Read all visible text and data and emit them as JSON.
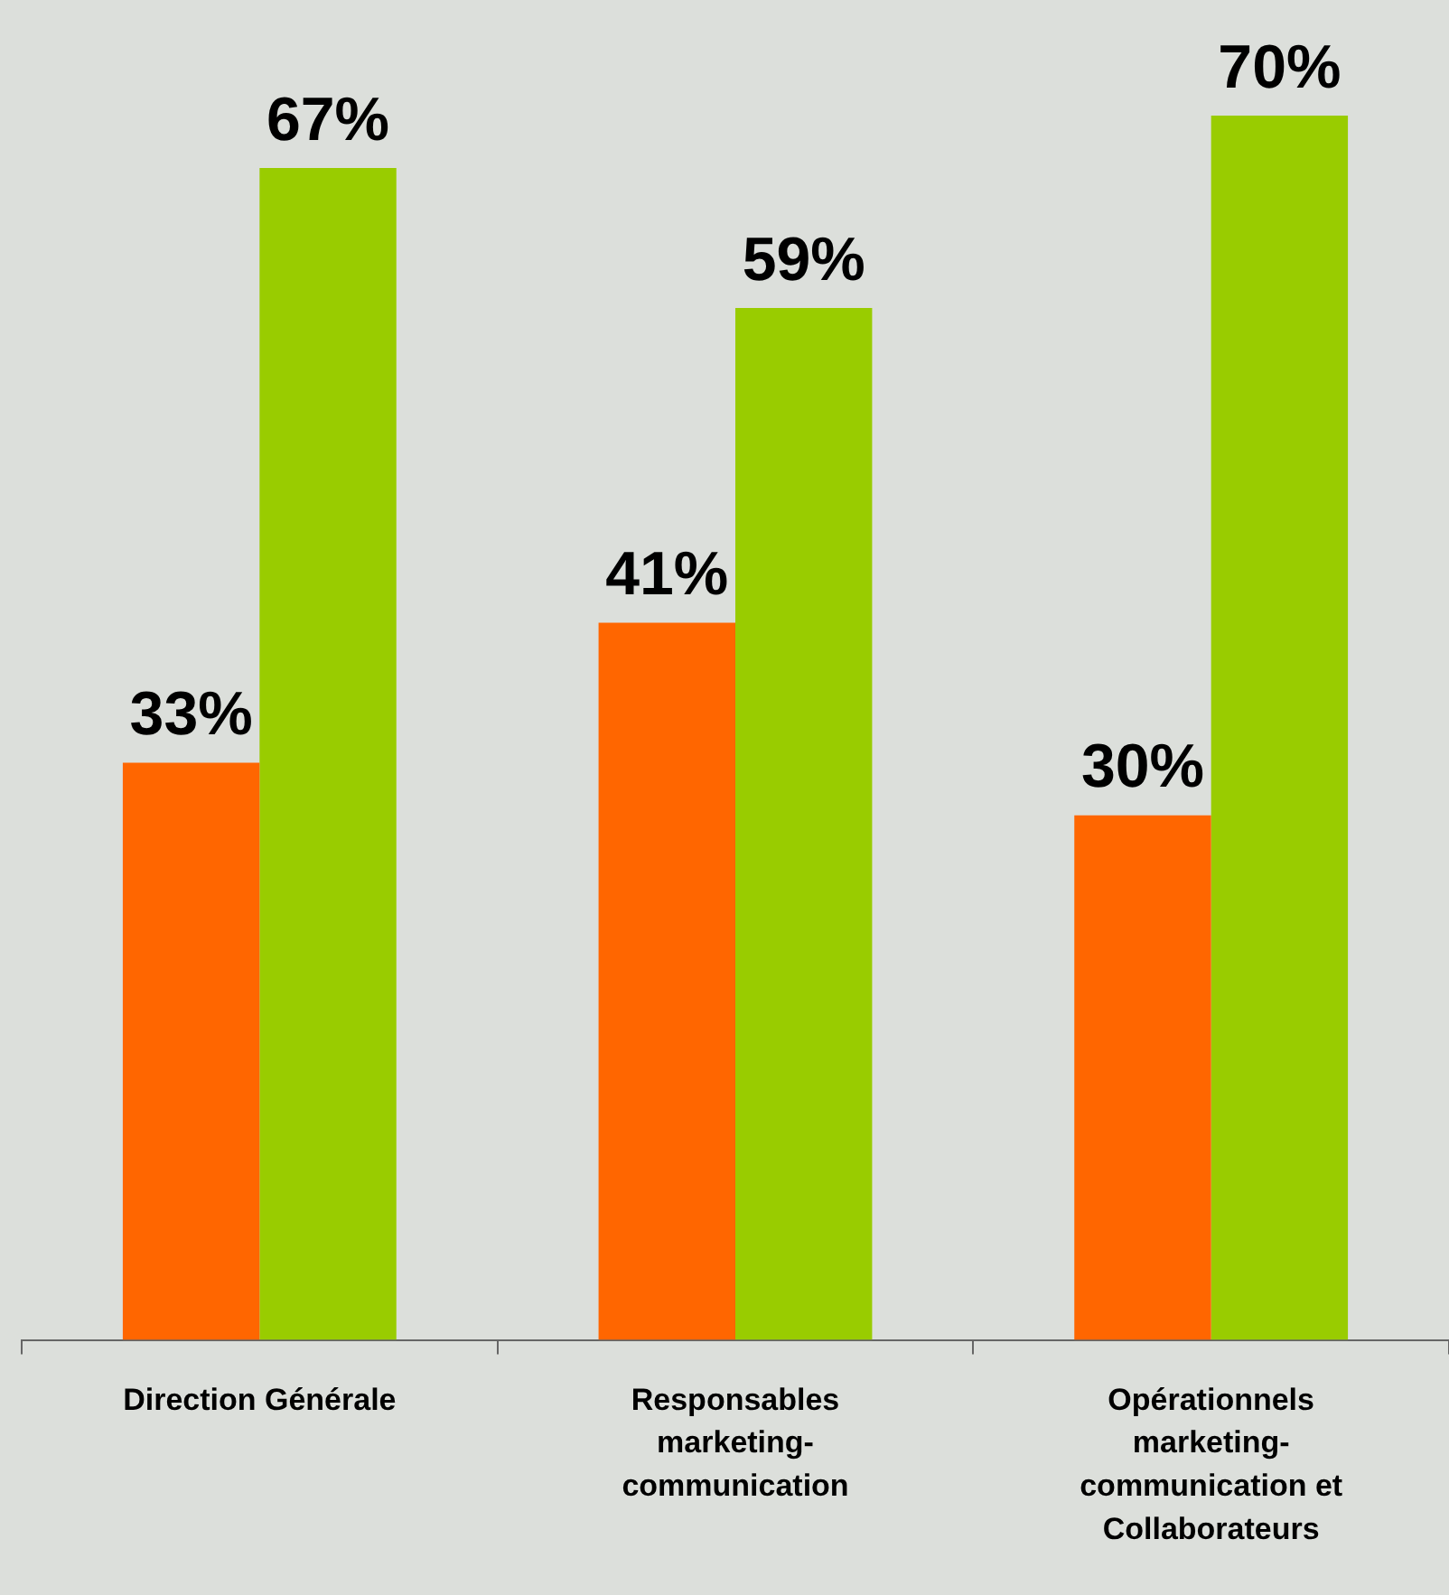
{
  "chart_data": {
    "type": "bar",
    "categories": [
      "Direction Générale",
      "Responsables marketing-communication",
      "Opérationnels marketing-communication et Collaborateurs"
    ],
    "series": [
      {
        "color": "#ff6600",
        "values": [
          33,
          41,
          30
        ],
        "value_labels": [
          "33%",
          "41%",
          "30%"
        ]
      },
      {
        "color": "#99cc00",
        "values": [
          67,
          59,
          70
        ],
        "value_labels": [
          "67%",
          "59%",
          "70%"
        ]
      }
    ],
    "tick_labels": "x"
  }
}
